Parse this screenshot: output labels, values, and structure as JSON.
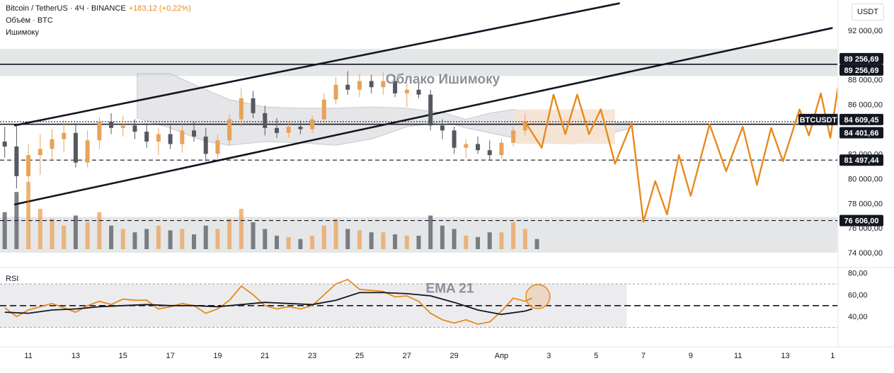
{
  "header": {
    "symbol": "Bitcoin / TetherUS · 4Ч · BINANCE",
    "change": "+183,12 (+0,22%)",
    "volume_label": "Объём · BTC",
    "indicator_label": "Ишимоку"
  },
  "currency_button": "USDT",
  "rsi_label": "RSI",
  "chart_data": {
    "type": "candlestick",
    "y_axis": {
      "range": [
        72800,
        93200
      ],
      "ticks": [
        "92 000,00",
        "88 000,00",
        "86 000,00",
        "82 000,00",
        "80 000,00",
        "78 000,00",
        "76 000,00",
        "74 000,00"
      ],
      "tick_values": [
        92000,
        88000,
        86000,
        82000,
        80000,
        78000,
        76000,
        74000
      ]
    },
    "x_axis": {
      "ticks": [
        "11",
        "13",
        "15",
        "17",
        "19",
        "21",
        "23",
        "25",
        "27",
        "29",
        "Апр",
        "3",
        "5",
        "7",
        "9",
        "11",
        "13",
        "1"
      ],
      "tick_days": [
        11,
        13,
        15,
        17,
        19,
        21,
        23,
        25,
        27,
        29,
        31,
        33,
        35,
        37,
        39,
        41,
        43,
        45
      ],
      "range_days": [
        9.8,
        45.2
      ]
    },
    "price_levels": [
      {
        "value": 89256.69,
        "label": "89 256,69",
        "style": "solid"
      },
      {
        "value": 84609.45,
        "label": "84 609,45",
        "style": "dotted"
      },
      {
        "value": 84401.66,
        "label": "84 401,66",
        "style": "solid"
      },
      {
        "value": 81497.44,
        "label": "81 497,44",
        "style": "dashed"
      },
      {
        "value": 76606.0,
        "label": "76 606,00",
        "style": "dashed"
      }
    ],
    "current_price_label": "BTCUSDT",
    "zones": [
      {
        "from": 88300,
        "to": 90500
      },
      {
        "from": 74000,
        "to": 76900
      }
    ],
    "channel": {
      "upper": [
        [
          10.4,
          84300
        ],
        [
          36.0,
          94200
        ]
      ],
      "lower": [
        [
          10.4,
          77900
        ],
        [
          45.0,
          92200
        ]
      ]
    },
    "candles_daily": [
      {
        "day": 10.0,
        "o": 83000,
        "h": 84200,
        "l": 81700,
        "c": 82600
      },
      {
        "day": 10.5,
        "o": 82600,
        "h": 84300,
        "l": 79200,
        "c": 80200
      },
      {
        "day": 11.0,
        "o": 80200,
        "h": 82800,
        "l": 76600,
        "c": 81900
      },
      {
        "day": 11.5,
        "o": 81900,
        "h": 83600,
        "l": 80300,
        "c": 82400
      },
      {
        "day": 12.0,
        "o": 82400,
        "h": 84000,
        "l": 81500,
        "c": 83200
      },
      {
        "day": 12.5,
        "o": 83200,
        "h": 84700,
        "l": 82200,
        "c": 83700
      },
      {
        "day": 13.0,
        "o": 83700,
        "h": 84500,
        "l": 80900,
        "c": 81300
      },
      {
        "day": 13.5,
        "o": 81300,
        "h": 83900,
        "l": 80900,
        "c": 83100
      },
      {
        "day": 14.0,
        "o": 83100,
        "h": 85000,
        "l": 82400,
        "c": 84600
      },
      {
        "day": 14.5,
        "o": 84600,
        "h": 85300,
        "l": 83600,
        "c": 84100
      },
      {
        "day": 15.0,
        "o": 84100,
        "h": 85100,
        "l": 83400,
        "c": 84300
      },
      {
        "day": 15.5,
        "o": 84300,
        "h": 84800,
        "l": 83200,
        "c": 83800
      },
      {
        "day": 16.0,
        "o": 83800,
        "h": 84500,
        "l": 82500,
        "c": 83000
      },
      {
        "day": 16.5,
        "o": 83000,
        "h": 84100,
        "l": 81900,
        "c": 83600
      },
      {
        "day": 17.0,
        "o": 83600,
        "h": 84300,
        "l": 82400,
        "c": 82800
      },
      {
        "day": 17.5,
        "o": 82800,
        "h": 84400,
        "l": 82100,
        "c": 83900
      },
      {
        "day": 18.0,
        "o": 83900,
        "h": 84600,
        "l": 83000,
        "c": 83400
      },
      {
        "day": 18.5,
        "o": 83400,
        "h": 84100,
        "l": 81400,
        "c": 82000
      },
      {
        "day": 19.0,
        "o": 82000,
        "h": 83600,
        "l": 81600,
        "c": 83100
      },
      {
        "day": 19.5,
        "o": 83100,
        "h": 85200,
        "l": 82700,
        "c": 84800
      },
      {
        "day": 20.0,
        "o": 84800,
        "h": 87300,
        "l": 84200,
        "c": 86500
      },
      {
        "day": 20.5,
        "o": 86500,
        "h": 87100,
        "l": 84900,
        "c": 85300
      },
      {
        "day": 21.0,
        "o": 85300,
        "h": 85900,
        "l": 83500,
        "c": 84100
      },
      {
        "day": 21.5,
        "o": 84100,
        "h": 84900,
        "l": 83300,
        "c": 83700
      },
      {
        "day": 22.0,
        "o": 83700,
        "h": 84600,
        "l": 83300,
        "c": 84200
      },
      {
        "day": 22.5,
        "o": 84200,
        "h": 84700,
        "l": 83600,
        "c": 84000
      },
      {
        "day": 23.0,
        "o": 84000,
        "h": 85100,
        "l": 83700,
        "c": 84800
      },
      {
        "day": 23.5,
        "o": 84800,
        "h": 86900,
        "l": 84500,
        "c": 86400
      },
      {
        "day": 24.0,
        "o": 86400,
        "h": 88200,
        "l": 86000,
        "c": 87600
      },
      {
        "day": 24.5,
        "o": 87600,
        "h": 88700,
        "l": 86800,
        "c": 87200
      },
      {
        "day": 25.0,
        "o": 87200,
        "h": 88500,
        "l": 86600,
        "c": 87900
      },
      {
        "day": 25.5,
        "o": 87900,
        "h": 88400,
        "l": 86900,
        "c": 87400
      },
      {
        "day": 26.0,
        "o": 87400,
        "h": 88600,
        "l": 86800,
        "c": 87900
      },
      {
        "day": 26.5,
        "o": 87900,
        "h": 88300,
        "l": 86600,
        "c": 86900
      },
      {
        "day": 27.0,
        "o": 86900,
        "h": 87700,
        "l": 85800,
        "c": 87200
      },
      {
        "day": 27.5,
        "o": 87200,
        "h": 87900,
        "l": 86500,
        "c": 86800
      },
      {
        "day": 28.0,
        "o": 86800,
        "h": 87200,
        "l": 83900,
        "c": 84300
      },
      {
        "day": 28.5,
        "o": 84300,
        "h": 84800,
        "l": 83200,
        "c": 83900
      },
      {
        "day": 29.0,
        "o": 83900,
        "h": 84200,
        "l": 82000,
        "c": 82500
      },
      {
        "day": 29.5,
        "o": 82500,
        "h": 83200,
        "l": 81700,
        "c": 82800
      },
      {
        "day": 30.0,
        "o": 82800,
        "h": 83400,
        "l": 82000,
        "c": 82300
      },
      {
        "day": 30.5,
        "o": 82300,
        "h": 83100,
        "l": 81500,
        "c": 81900
      },
      {
        "day": 31.0,
        "o": 81900,
        "h": 83200,
        "l": 81600,
        "c": 82900
      },
      {
        "day": 31.5,
        "o": 82900,
        "h": 84200,
        "l": 82600,
        "c": 83900
      },
      {
        "day": 32.0,
        "o": 83900,
        "h": 85300,
        "l": 83500,
        "c": 84600
      }
    ],
    "volume_bars": [
      {
        "day": 10.0,
        "v": 0.55,
        "dir": "down"
      },
      {
        "day": 10.5,
        "v": 0.85,
        "dir": "down"
      },
      {
        "day": 11.0,
        "v": 1.0,
        "dir": "up"
      },
      {
        "day": 11.5,
        "v": 0.6,
        "dir": "up"
      },
      {
        "day": 12.0,
        "v": 0.45,
        "dir": "up"
      },
      {
        "day": 12.5,
        "v": 0.35,
        "dir": "up"
      },
      {
        "day": 13.0,
        "v": 0.5,
        "dir": "down"
      },
      {
        "day": 13.5,
        "v": 0.4,
        "dir": "up"
      },
      {
        "day": 14.0,
        "v": 0.55,
        "dir": "up"
      },
      {
        "day": 14.5,
        "v": 0.35,
        "dir": "down"
      },
      {
        "day": 15.0,
        "v": 0.3,
        "dir": "up"
      },
      {
        "day": 15.5,
        "v": 0.25,
        "dir": "down"
      },
      {
        "day": 16.0,
        "v": 0.3,
        "dir": "down"
      },
      {
        "day": 16.5,
        "v": 0.35,
        "dir": "up"
      },
      {
        "day": 17.0,
        "v": 0.28,
        "dir": "down"
      },
      {
        "day": 17.5,
        "v": 0.3,
        "dir": "up"
      },
      {
        "day": 18.0,
        "v": 0.22,
        "dir": "down"
      },
      {
        "day": 18.5,
        "v": 0.35,
        "dir": "down"
      },
      {
        "day": 19.0,
        "v": 0.3,
        "dir": "up"
      },
      {
        "day": 19.5,
        "v": 0.45,
        "dir": "up"
      },
      {
        "day": 20.0,
        "v": 0.6,
        "dir": "up"
      },
      {
        "day": 20.5,
        "v": 0.4,
        "dir": "down"
      },
      {
        "day": 21.0,
        "v": 0.3,
        "dir": "down"
      },
      {
        "day": 21.5,
        "v": 0.2,
        "dir": "down"
      },
      {
        "day": 22.0,
        "v": 0.18,
        "dir": "up"
      },
      {
        "day": 22.5,
        "v": 0.15,
        "dir": "down"
      },
      {
        "day": 23.0,
        "v": 0.2,
        "dir": "up"
      },
      {
        "day": 23.5,
        "v": 0.35,
        "dir": "up"
      },
      {
        "day": 24.0,
        "v": 0.45,
        "dir": "up"
      },
      {
        "day": 24.5,
        "v": 0.3,
        "dir": "down"
      },
      {
        "day": 25.0,
        "v": 0.28,
        "dir": "up"
      },
      {
        "day": 25.5,
        "v": 0.25,
        "dir": "down"
      },
      {
        "day": 26.0,
        "v": 0.25,
        "dir": "up"
      },
      {
        "day": 26.5,
        "v": 0.22,
        "dir": "down"
      },
      {
        "day": 27.0,
        "v": 0.2,
        "dir": "up"
      },
      {
        "day": 27.5,
        "v": 0.2,
        "dir": "down"
      },
      {
        "day": 28.0,
        "v": 0.5,
        "dir": "down"
      },
      {
        "day": 28.5,
        "v": 0.35,
        "dir": "down"
      },
      {
        "day": 29.0,
        "v": 0.3,
        "dir": "down"
      },
      {
        "day": 29.5,
        "v": 0.2,
        "dir": "up"
      },
      {
        "day": 30.0,
        "v": 0.18,
        "dir": "down"
      },
      {
        "day": 30.5,
        "v": 0.25,
        "dir": "down"
      },
      {
        "day": 31.0,
        "v": 0.25,
        "dir": "up"
      },
      {
        "day": 31.5,
        "v": 0.4,
        "dir": "up"
      },
      {
        "day": 32.0,
        "v": 0.3,
        "dir": "up"
      },
      {
        "day": 32.5,
        "v": 0.15,
        "dir": "down"
      }
    ],
    "ichimoku_cloud": {
      "upper": [
        [
          15.6,
          88500
        ],
        [
          17.0,
          88500
        ],
        [
          18.5,
          87200
        ],
        [
          19.5,
          86400
        ],
        [
          21.0,
          85800
        ],
        [
          22.5,
          85700
        ],
        [
          24.0,
          85700
        ],
        [
          25.5,
          85800
        ],
        [
          27.0,
          85700
        ],
        [
          28.6,
          85300
        ],
        [
          29.5,
          84800
        ],
        [
          30.5,
          85300
        ],
        [
          31.5,
          85600
        ],
        [
          32.5,
          85300
        ],
        [
          34.0,
          84900
        ],
        [
          35.5,
          84500
        ],
        [
          36.5,
          84600
        ]
      ],
      "lower": [
        [
          15.6,
          84900
        ],
        [
          17.0,
          84100
        ],
        [
          18.5,
          83000
        ],
        [
          19.5,
          82700
        ],
        [
          21.0,
          83000
        ],
        [
          22.5,
          82900
        ],
        [
          24.0,
          82700
        ],
        [
          25.5,
          83200
        ],
        [
          27.0,
          84200
        ],
        [
          28.6,
          84600
        ],
        [
          29.5,
          84100
        ],
        [
          30.5,
          83700
        ],
        [
          31.5,
          83300
        ],
        [
          32.5,
          83000
        ],
        [
          34.0,
          82800
        ],
        [
          35.5,
          83600
        ],
        [
          36.5,
          84100
        ]
      ]
    },
    "ichimoku_label": "Облако Ишимоку",
    "forecast_path": [
      [
        32.0,
        84600
      ],
      [
        32.7,
        82500
      ],
      [
        33.2,
        86800
      ],
      [
        33.7,
        83600
      ],
      [
        34.2,
        86800
      ],
      [
        34.7,
        83600
      ],
      [
        35.2,
        85600
      ],
      [
        35.8,
        81200
      ],
      [
        36.5,
        84500
      ],
      [
        37.0,
        76500
      ],
      [
        37.5,
        79800
      ],
      [
        38.0,
        77100
      ],
      [
        38.5,
        81900
      ],
      [
        39.0,
        78600
      ],
      [
        39.8,
        84400
      ],
      [
        40.5,
        80600
      ],
      [
        41.2,
        84200
      ],
      [
        41.8,
        79500
      ],
      [
        42.4,
        84100
      ],
      [
        42.9,
        81400
      ],
      [
        43.6,
        85600
      ],
      [
        44.0,
        83500
      ],
      [
        44.5,
        86900
      ],
      [
        44.9,
        83300
      ],
      [
        45.5,
        90800
      ],
      [
        46.0,
        89400
      ]
    ],
    "rsi": {
      "range": [
        20,
        85
      ],
      "ticks": [
        "80,00",
        "60,00",
        "40,00"
      ],
      "tick_values": [
        80,
        60,
        40
      ],
      "bands": [
        70,
        30
      ],
      "midline": 50,
      "values": [
        [
          10.0,
          48
        ],
        [
          10.5,
          40
        ],
        [
          11.0,
          46
        ],
        [
          11.5,
          49
        ],
        [
          12.0,
          52
        ],
        [
          12.5,
          48
        ],
        [
          13.0,
          44
        ],
        [
          13.5,
          50
        ],
        [
          14.0,
          54
        ],
        [
          14.5,
          51
        ],
        [
          15.0,
          56
        ],
        [
          15.5,
          55
        ],
        [
          16.0,
          55
        ],
        [
          16.5,
          47
        ],
        [
          17.0,
          49
        ],
        [
          17.5,
          52
        ],
        [
          18.0,
          50
        ],
        [
          18.5,
          43
        ],
        [
          19.0,
          47
        ],
        [
          19.5,
          55
        ],
        [
          20.0,
          68
        ],
        [
          20.5,
          60
        ],
        [
          21.0,
          50
        ],
        [
          21.5,
          47
        ],
        [
          22.0,
          49
        ],
        [
          22.5,
          47
        ],
        [
          23.0,
          50
        ],
        [
          23.5,
          60
        ],
        [
          24.0,
          70
        ],
        [
          24.5,
          74
        ],
        [
          25.0,
          65
        ],
        [
          25.5,
          64
        ],
        [
          26.0,
          63
        ],
        [
          26.5,
          58
        ],
        [
          27.0,
          59
        ],
        [
          27.5,
          54
        ],
        [
          28.0,
          43
        ],
        [
          28.5,
          37
        ],
        [
          29.0,
          34
        ],
        [
          29.5,
          37
        ],
        [
          30.0,
          33
        ],
        [
          30.5,
          35
        ],
        [
          31.0,
          45
        ],
        [
          31.5,
          57
        ],
        [
          32.0,
          54
        ],
        [
          32.3,
          57
        ]
      ],
      "ema21": [
        [
          10.0,
          44
        ],
        [
          11.0,
          43
        ],
        [
          12.0,
          46
        ],
        [
          13.0,
          47
        ],
        [
          14.0,
          49
        ],
        [
          15.0,
          50
        ],
        [
          16.0,
          51
        ],
        [
          17.0,
          50
        ],
        [
          18.0,
          50
        ],
        [
          19.0,
          49
        ],
        [
          20.0,
          51
        ],
        [
          21.0,
          53
        ],
        [
          22.0,
          52
        ],
        [
          23.0,
          51
        ],
        [
          24.0,
          55
        ],
        [
          25.0,
          62
        ],
        [
          26.0,
          62
        ],
        [
          27.0,
          61
        ],
        [
          28.0,
          59
        ],
        [
          29.0,
          53
        ],
        [
          30.0,
          46
        ],
        [
          31.0,
          42
        ],
        [
          32.0,
          45
        ],
        [
          32.3,
          47
        ]
      ],
      "ema_label": "EMA 21"
    }
  },
  "colors": {
    "up": "#e8a25a",
    "down": "#555861",
    "forecast": "#e8891c",
    "zone": "#dcdde0",
    "cloud": "#d9dadd",
    "cloud_future": "#f6e3d2",
    "label_bg": "#131722",
    "label_text": "#ffffff",
    "rsi_line": "#e8891c",
    "ema_line": "#131722"
  }
}
